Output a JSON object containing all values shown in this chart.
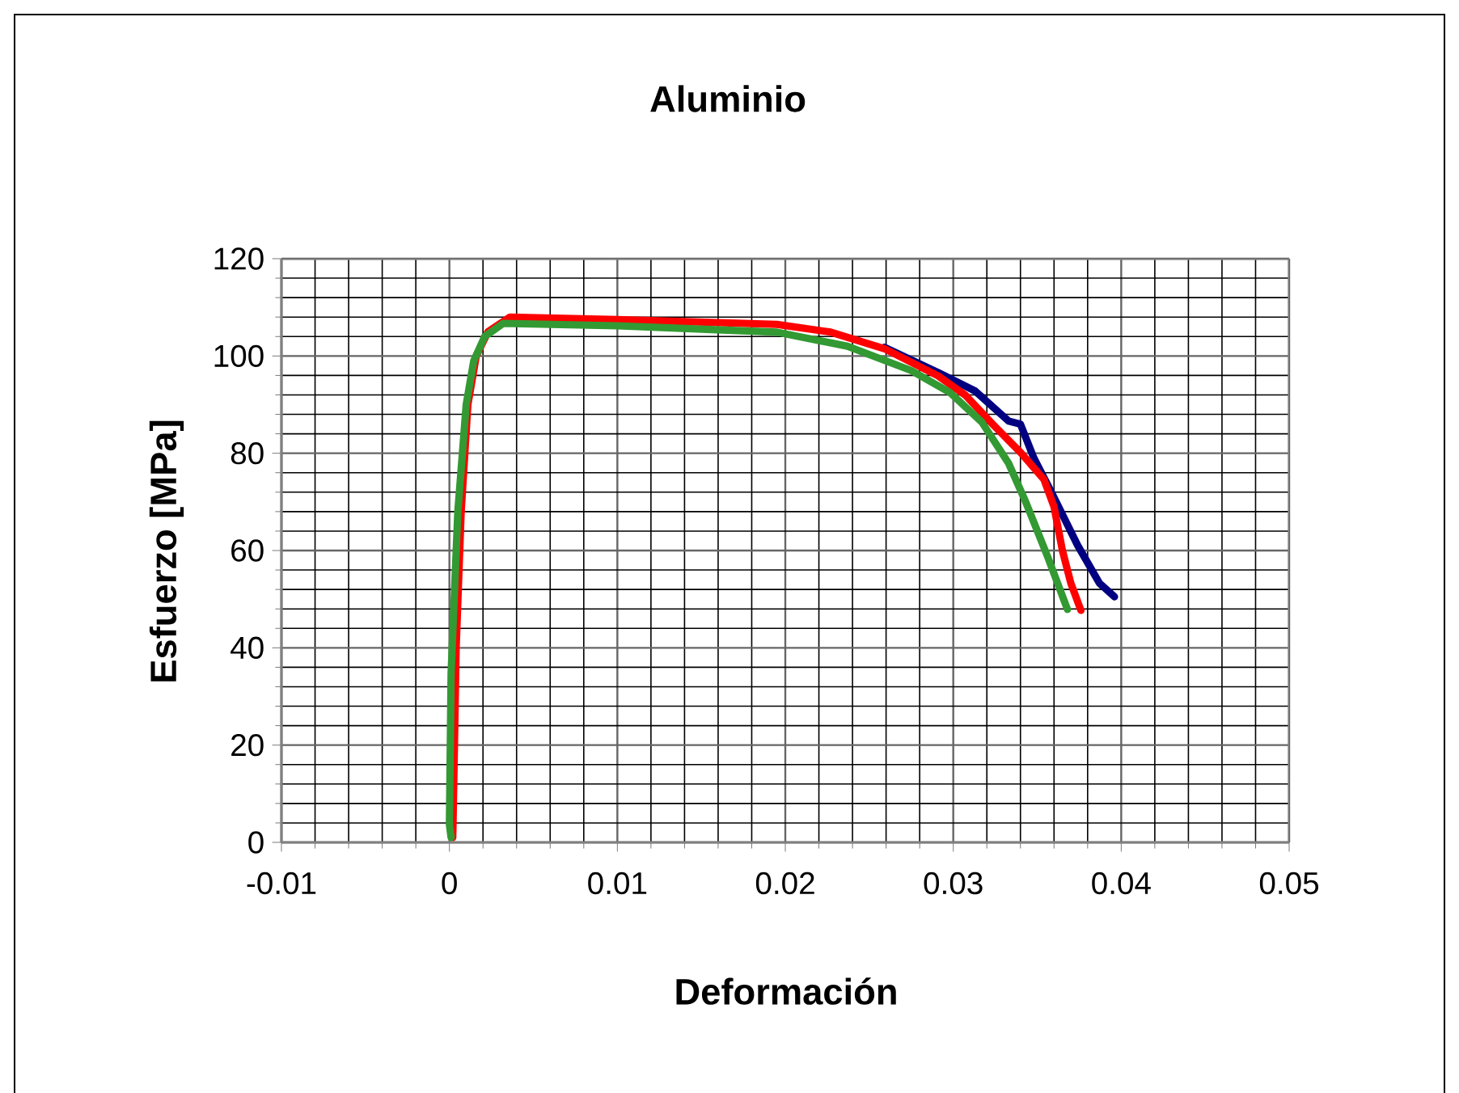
{
  "chart_data": {
    "type": "line",
    "title": "Aluminio",
    "xlabel": "Deformación",
    "ylabel": "Esfuerzo [MPa]",
    "xlim": [
      -0.01,
      0.05
    ],
    "ylim": [
      0,
      120
    ],
    "xticks": [
      -0.01,
      0,
      0.01,
      0.02,
      0.03,
      0.04,
      0.05
    ],
    "yticks": [
      0,
      20,
      40,
      60,
      80,
      100,
      120
    ],
    "grid": true,
    "marker": "none",
    "line_style": "solid",
    "series": [
      {
        "color": "#000080",
        "x": [
          0.0259,
          0.0291,
          0.0313,
          0.0333,
          0.034,
          0.0348,
          0.0358,
          0.0374,
          0.0387,
          0.0396
        ],
        "values": [
          101.8,
          96.6,
          92.8,
          86.6,
          86,
          79,
          72.3,
          61.1,
          53.3,
          50.5
        ]
      },
      {
        "color": "#ff0000",
        "x": [
          0.0002,
          0.0003,
          0.0004,
          0.0007,
          0.0011,
          0.0016,
          0.0023,
          0.0036,
          0.01,
          0.0195,
          0.0227,
          0.0259,
          0.0291,
          0.0307,
          0.0324,
          0.034,
          0.0354,
          0.036,
          0.0365,
          0.037,
          0.0376
        ],
        "values": [
          1,
          20,
          40,
          68,
          90,
          100,
          105,
          108,
          107.5,
          106.5,
          104.9,
          101.5,
          95.9,
          92,
          85.8,
          80.2,
          74.6,
          69,
          60,
          53.3,
          47.7
        ]
      },
      {
        "color": "#339933",
        "x": [
          0.0001,
          0,
          0.0001,
          0.0005,
          0.001,
          0.00145,
          0.0021,
          0.0032,
          0.01,
          0.0195,
          0.0237,
          0.0275,
          0.0298,
          0.0317,
          0.0333,
          0.0343,
          0.0356,
          0.0368
        ],
        "values": [
          1,
          3.7,
          34.7,
          67.9,
          90,
          99,
          104,
          106.7,
          106.2,
          104.9,
          102,
          97,
          92.5,
          86.4,
          77.9,
          70.1,
          58.9,
          47.9
        ]
      }
    ]
  }
}
